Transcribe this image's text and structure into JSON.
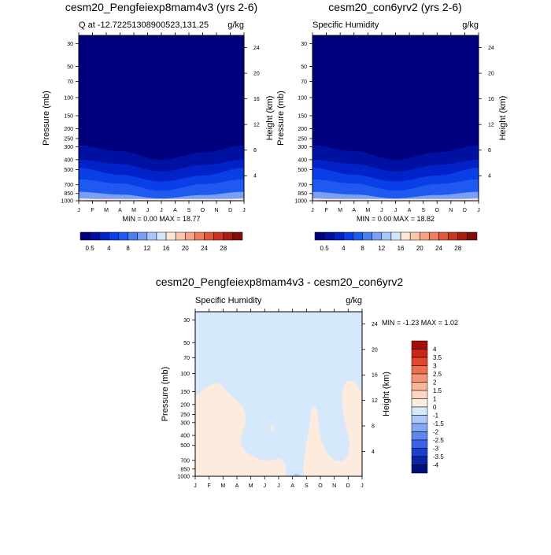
{
  "chart_data": [
    {
      "type": "heatmap",
      "title": "cesm20_Pengfeiexp8mam4v3 (yrs 2-6)",
      "subtitle_left": "Q at -12.72251308900523,131.25",
      "subtitle_right": "g/kg",
      "xlabel": "",
      "ylabel": "Pressure (mb)",
      "ylabel_right": "Height (km)",
      "x_ticks": [
        "J",
        "F",
        "M",
        "A",
        "M",
        "J",
        "J",
        "A",
        "S",
        "O",
        "N",
        "D",
        "J"
      ],
      "pressure_ticks": [
        "30",
        "50",
        "70",
        "100",
        "150",
        "200",
        "250",
        "300",
        "400",
        "500",
        "700",
        "850",
        "1000"
      ],
      "height_ticks": [
        "4",
        "8",
        "12",
        "16",
        "20",
        "24"
      ],
      "stats": "MIN =   0.00 MAX =  18.77",
      "colorbar_labels": [
        "0.5",
        "4",
        "8",
        "12",
        "16",
        "20",
        "24",
        "28"
      ],
      "colorbar_colors": [
        "#00007f",
        "#0010a0",
        "#0022c8",
        "#0a3ee6",
        "#1f5af0",
        "#4c7ef2",
        "#7aa0f5",
        "#a8c6f9",
        "#d2e6fc",
        "#fde6d4",
        "#fcc6ac",
        "#f7a385",
        "#ef7d5f",
        "#e0573e",
        "#c93424",
        "#a91d14",
        "#840e0a"
      ],
      "profile": [
        {
          "month": 1,
          "p300": 290,
          "p400": 400,
          "p500": 480,
          "p700": 620,
          "p850": 820,
          "p1000": 950
        },
        {
          "month": 4,
          "p300": 330,
          "p400": 440,
          "p500": 560,
          "p700": 680,
          "p850": 870,
          "p1000": 990
        },
        {
          "month": 7,
          "p300": 400,
          "p400": 520,
          "p500": 650,
          "p700": 800,
          "p850": 950,
          "p1000": 1000
        },
        {
          "month": 10,
          "p300": 340,
          "p400": 450,
          "p500": 570,
          "p700": 690,
          "p850": 880,
          "p1000": 990
        },
        {
          "month": 13,
          "p300": 290,
          "p400": 400,
          "p500": 480,
          "p700": 620,
          "p850": 820,
          "p1000": 950
        }
      ]
    },
    {
      "type": "heatmap",
      "title": "cesm20_con6yrv2 (yrs 2-6)",
      "subtitle_left": "Specific Humidity",
      "subtitle_right": "g/kg",
      "xlabel": "",
      "ylabel": "Pressure (mb)",
      "ylabel_right": "Height (km)",
      "x_ticks": [
        "J",
        "F",
        "M",
        "A",
        "M",
        "J",
        "J",
        "A",
        "S",
        "O",
        "N",
        "D",
        "J"
      ],
      "pressure_ticks": [
        "30",
        "50",
        "70",
        "100",
        "150",
        "200",
        "250",
        "300",
        "400",
        "500",
        "700",
        "850",
        "1000"
      ],
      "height_ticks": [
        "4",
        "8",
        "12",
        "16",
        "20",
        "24"
      ],
      "stats": "MIN =   0.00 MAX =  18.82",
      "colorbar_labels": [
        "0.5",
        "4",
        "8",
        "12",
        "16",
        "20",
        "24",
        "28"
      ],
      "colorbar_colors": [
        "#00007f",
        "#0010a0",
        "#0022c8",
        "#0a3ee6",
        "#1f5af0",
        "#4c7ef2",
        "#7aa0f5",
        "#a8c6f9",
        "#d2e6fc",
        "#fde6d4",
        "#fcc6ac",
        "#f7a385",
        "#ef7d5f",
        "#e0573e",
        "#c93424",
        "#a91d14",
        "#840e0a"
      ]
    },
    {
      "type": "heatmap",
      "title": "cesm20_Pengfeiexp8mam4v3 - cesm20_con6yrv2",
      "subtitle_left": "Specific Humidity",
      "subtitle_right": "g/kg",
      "xlabel": "",
      "ylabel": "Pressure (mb)",
      "ylabel_right": "Height (km)",
      "x_ticks": [
        "J",
        "F",
        "M",
        "A",
        "M",
        "J",
        "J",
        "A",
        "S",
        "O",
        "N",
        "D",
        "J"
      ],
      "pressure_ticks": [
        "30",
        "50",
        "70",
        "100",
        "150",
        "200",
        "250",
        "300",
        "400",
        "500",
        "700",
        "850",
        "1000"
      ],
      "height_ticks": [
        "4",
        "8",
        "12",
        "16",
        "20",
        "24"
      ],
      "stats": "MIN =  -1.23 MAX =   1.02",
      "colorbar_labels": [
        "4",
        "3.5",
        "3",
        "2.5",
        "2",
        "1.5",
        "1",
        "0",
        "-1",
        "-1.5",
        "-2",
        "-2.5",
        "-3",
        "-3.5",
        "-4"
      ],
      "colorbar_colors": [
        "#a80c0a",
        "#c8261a",
        "#e0472e",
        "#ef6e4e",
        "#f59377",
        "#f9b69d",
        "#fcd6c2",
        "#fdecdd",
        "#d6e8fb",
        "#aec9f7",
        "#86a8f2",
        "#5f86ee",
        "#3a62e6",
        "#1c40cc",
        "#0a24a6",
        "#000f7e"
      ],
      "diff_background": "#d6e8fb",
      "diff_positive": "#fdecdd",
      "diff_negative": "#aec9f7"
    }
  ]
}
